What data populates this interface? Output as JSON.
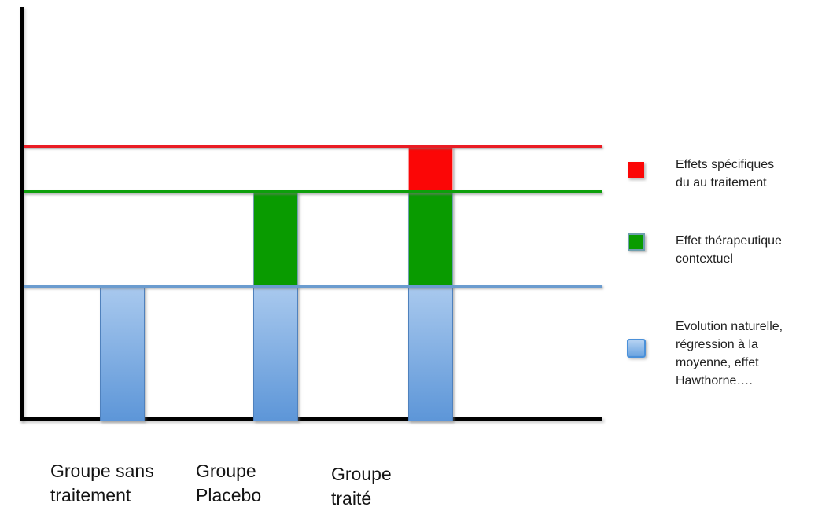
{
  "chart_data": {
    "type": "bar",
    "stacked": true,
    "title": "",
    "xlabel": "",
    "ylabel": "",
    "grid": false,
    "legend_position": "right",
    "ylim": [
      0,
      100
    ],
    "axis_color": "#000000",
    "categories": [
      "Groupe sans\ntraitement",
      "Groupe\nPlacebo",
      "Groupe\ntraité"
    ],
    "series": [
      {
        "key": "natural-evolution",
        "name": "Evolution naturelle, régression à la moyenne, effet Hawthorne….",
        "values": [
          32,
          32,
          32
        ],
        "fill_top": "#a9c9ee",
        "fill_bottom": "#5d96d8",
        "border": "#4f81bd"
      },
      {
        "key": "contextual-effect",
        "name": "Effet thérapeutique contextuel",
        "values": [
          0,
          23,
          23
        ],
        "fill": "#099b00",
        "border": "#6f9fae"
      },
      {
        "key": "specific-effect",
        "name": "Effets spécifiques du au traitement",
        "values": [
          0,
          0,
          11
        ],
        "fill": "#fb0606",
        "border": "#f79a9c"
      }
    ],
    "reference_lines": [
      {
        "key": "blue-level",
        "level": 32,
        "color": "#6b9ccf"
      },
      {
        "key": "green-level",
        "level": 55,
        "color": "#0d9f0b"
      },
      {
        "key": "red-level",
        "level": 66,
        "color": "#ea1c24"
      }
    ]
  },
  "x_labels": [
    "Groupe sans\ntraitement",
    "Groupe\nPlacebo",
    "Groupe\ntraité"
  ],
  "legend": {
    "items": [
      {
        "key": "red",
        "label": "Effets spécifiques\ndu au traitement",
        "color": "#fb0606"
      },
      {
        "key": "green",
        "label": "Effet thérapeutique\ncontextuel",
        "color": "#099b00"
      },
      {
        "key": "blue",
        "label": "Evolution naturelle,\nrégression à la\nmoyenne, effet\nHawthorne….",
        "color": "#7fb2e8"
      }
    ]
  },
  "colors": {
    "axis": "#000000",
    "blue_bar_top": "#a9c9ee",
    "blue_bar_bottom": "#5d96d8",
    "green_bar": "#099b00",
    "red_bar": "#fb0606",
    "blue_line": "#6b9ccf",
    "green_line": "#0d9f0b",
    "red_line": "#ea1c24"
  }
}
